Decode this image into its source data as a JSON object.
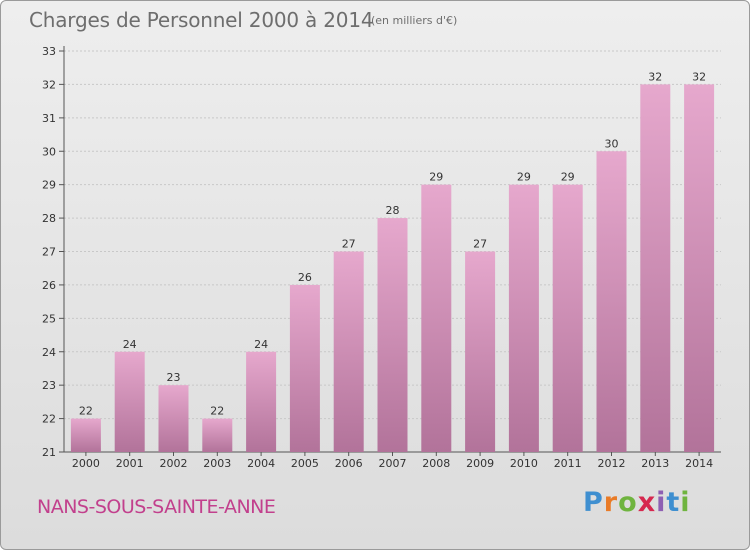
{
  "chart_data": {
    "type": "bar",
    "title": "Charges de Personnel 2000 à 2014",
    "subtitle": "(en milliers d'€)",
    "categories": [
      "2000",
      "2001",
      "2002",
      "2003",
      "2004",
      "2005",
      "2006",
      "2007",
      "2008",
      "2009",
      "2010",
      "2011",
      "2012",
      "2013",
      "2014"
    ],
    "values": [
      22,
      24,
      23,
      22,
      24,
      26,
      27,
      28,
      29,
      27,
      29,
      29,
      30,
      32,
      32
    ],
    "value_labels": [
      "22",
      "24",
      "23",
      "22",
      "24",
      "26",
      "27",
      "28",
      "29",
      "27",
      "29",
      "29",
      "30",
      "32",
      "32"
    ],
    "ylim": [
      21,
      33
    ],
    "yticks": [
      "21",
      "22",
      "23",
      "24",
      "25",
      "26",
      "27",
      "28",
      "29",
      "30",
      "31",
      "32",
      "33"
    ],
    "grid": true,
    "bar_color": "#d68bb6"
  },
  "footer": {
    "town": "NANS-SOUS-SAINTE-ANNE",
    "logo_letters": [
      "P",
      "r",
      "o",
      "x",
      "i",
      "t",
      "i"
    ],
    "logo_colors": [
      "#3f8fd0",
      "#e97b27",
      "#6fb43f",
      "#d6284f",
      "#8e5fb3",
      "#3f8fd0",
      "#6fb43f"
    ]
  }
}
